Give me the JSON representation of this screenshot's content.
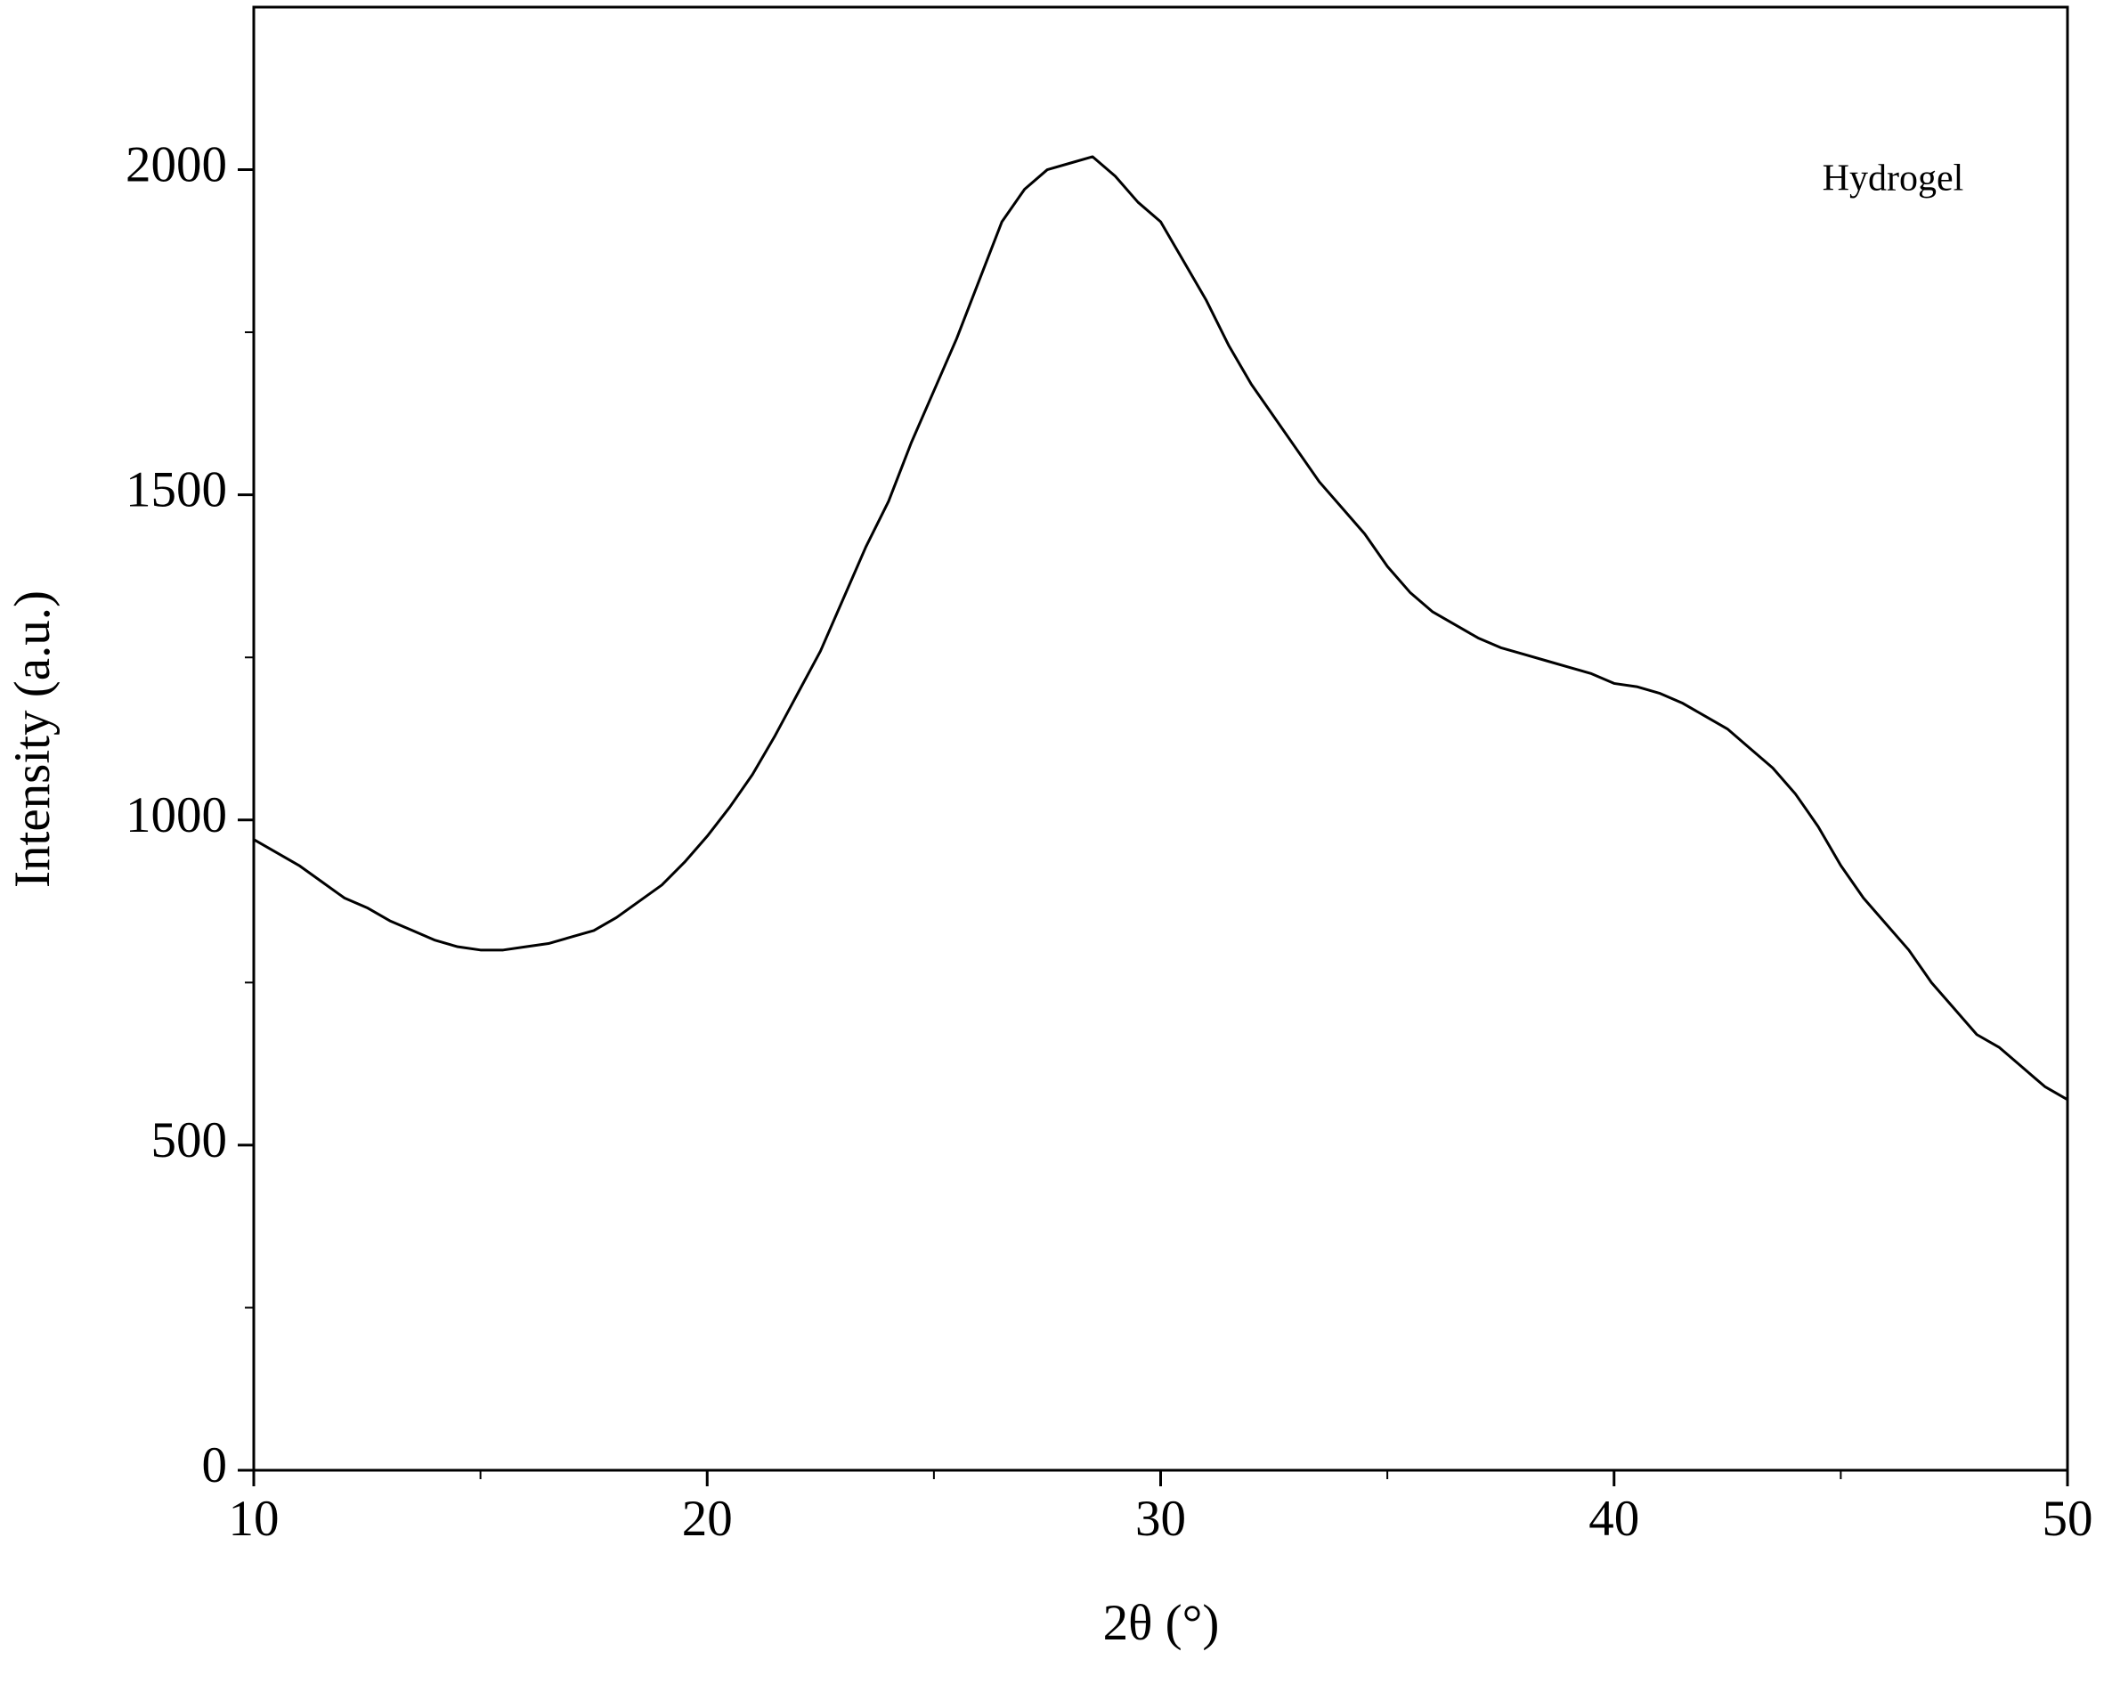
{
  "chart_data": {
    "type": "line",
    "xlabel": "2θ (°)",
    "ylabel": "Intensity (a.u.)",
    "annotation": "Hydrogel",
    "xlim": [
      10,
      50
    ],
    "xticks": [
      10,
      20,
      30,
      40,
      50
    ],
    "ylim": [
      0,
      2250
    ],
    "yticks": [
      0,
      500,
      1000,
      1500,
      2000
    ],
    "series": [
      {
        "name": "Hydrogel",
        "color": "#000000",
        "x": [
          10,
          10.5,
          11,
          11.5,
          12,
          12.5,
          13,
          13.5,
          14,
          14.5,
          15,
          15.5,
          16,
          16.5,
          17,
          17.5,
          18,
          18.5,
          19,
          19.5,
          20,
          20.5,
          21,
          21.5,
          22,
          22.5,
          23,
          23.5,
          24,
          24.5,
          25,
          25.5,
          26,
          26.5,
          27,
          27.5,
          28,
          28.5,
          29,
          29.5,
          30,
          30.5,
          31,
          31.5,
          32,
          32.5,
          33,
          33.5,
          34,
          34.5,
          35,
          35.5,
          36,
          36.5,
          37,
          37.5,
          38,
          38.5,
          39,
          39.5,
          40,
          40.5,
          41,
          41.5,
          42,
          42.5,
          43,
          43.5,
          44,
          44.5,
          45,
          45.5,
          46,
          46.5,
          47,
          47.5,
          48,
          48.5,
          49,
          49.5,
          50
        ],
        "values": [
          970,
          950,
          930,
          905,
          880,
          865,
          845,
          830,
          815,
          805,
          800,
          800,
          805,
          810,
          820,
          830,
          850,
          875,
          900,
          935,
          975,
          1020,
          1070,
          1130,
          1195,
          1260,
          1340,
          1420,
          1490,
          1580,
          1660,
          1740,
          1830,
          1920,
          1970,
          2000,
          2010,
          2020,
          1990,
          1950,
          1920,
          1860,
          1800,
          1730,
          1670,
          1620,
          1570,
          1520,
          1480,
          1440,
          1390,
          1350,
          1320,
          1300,
          1280,
          1265,
          1255,
          1245,
          1235,
          1225,
          1210,
          1205,
          1195,
          1180,
          1160,
          1140,
          1110,
          1080,
          1040,
          990,
          930,
          880,
          840,
          800,
          750,
          710,
          670,
          650,
          620,
          590,
          570
        ]
      }
    ]
  }
}
